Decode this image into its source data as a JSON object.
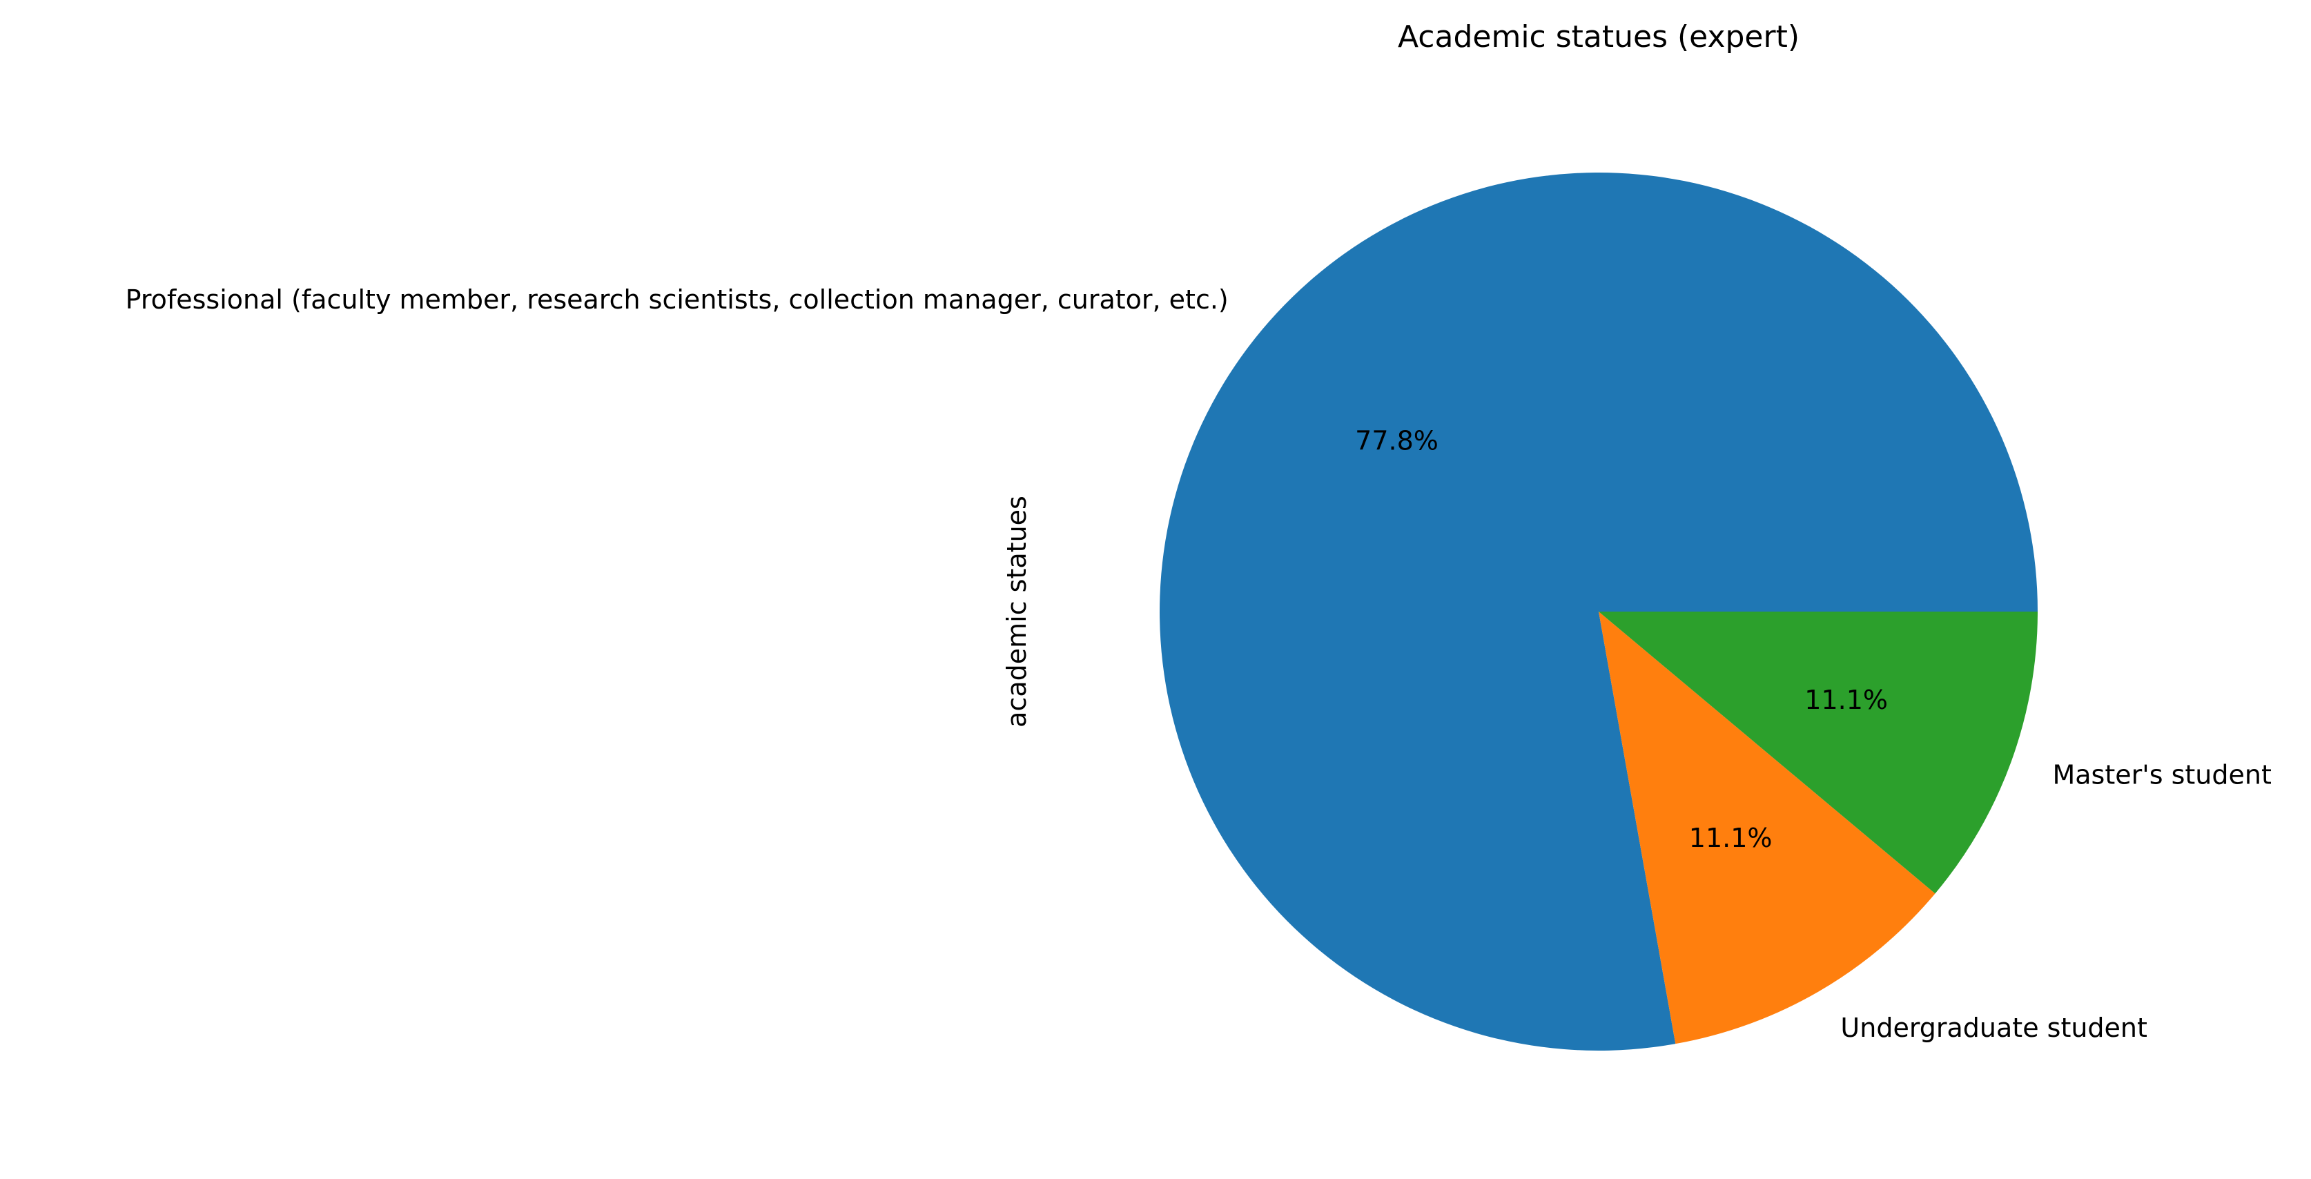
{
  "chart_data": {
    "type": "pie",
    "title": "Academic statues (expert)",
    "ylabel": "academic statues",
    "slices": [
      {
        "label": "Professional (faculty member, research scientists, collection manager, curator, etc.)",
        "value": 77.8,
        "pct_text": "77.8%",
        "color": "#1f77b4"
      },
      {
        "label": "Undergraduate student",
        "value": 11.1,
        "pct_text": "11.1%",
        "color": "#ff7f0e"
      },
      {
        "label": "Master's student",
        "value": 11.1,
        "pct_text": "11.1%",
        "color": "#2ca02c"
      }
    ],
    "start_angle_deg": 0,
    "direction": "counterclockwise",
    "legend": "none"
  }
}
